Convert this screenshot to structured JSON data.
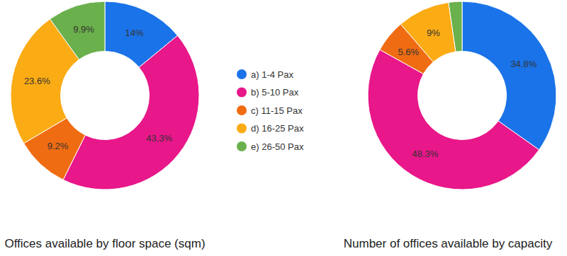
{
  "chart_data": [
    {
      "type": "donut",
      "title": "Offices available by floor space (sqm)",
      "categories": [
        "a) 1-4 Pax",
        "b) 5-10 Pax",
        "c) 11-15 Pax",
        "d) 16-25 Pax",
        "e) 26-50 Pax"
      ],
      "values": [
        14,
        43.3,
        9.2,
        23.6,
        9.9
      ],
      "value_labels": [
        "14%",
        "43.3%",
        "9.2%",
        "23.6%",
        "9.9%"
      ],
      "colors": [
        "#1a73e8",
        "#e8178a",
        "#f06c12",
        "#fbab14",
        "#6ab04c"
      ],
      "data_labels": true,
      "legend": "right"
    },
    {
      "type": "donut",
      "title": "Number of offices available by capacity",
      "categories": [
        "a) 1-4 Pax",
        "b) 5-10 Pax",
        "c) 11-15 Pax",
        "d) 16-25 Pax",
        "e) 26-50 Pax"
      ],
      "values": [
        34.8,
        48.3,
        5.6,
        9,
        2.3
      ],
      "value_labels": [
        "34.8%",
        "48.3%",
        "5.6%",
        "9%",
        null
      ],
      "colors": [
        "#1a73e8",
        "#e8178a",
        "#f06c12",
        "#fbab14",
        "#6ab04c"
      ],
      "data_labels": true
    }
  ]
}
